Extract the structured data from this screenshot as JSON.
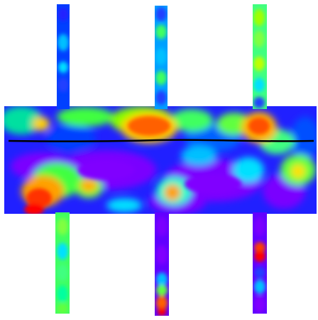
{
  "figure": {
    "description_free": true,
    "colormap": [
      "#8000ff",
      "#0000ff",
      "#0080ff",
      "#00ffff",
      "#00ff80",
      "#80ff00",
      "#ffff00",
      "#ff8000",
      "#ff0000"
    ],
    "background": "#ffffff",
    "line_color": "#000000"
  },
  "panels": {
    "count_vertical_strips": 3,
    "has_horizontal_band": true,
    "has_profile_line": true
  }
}
